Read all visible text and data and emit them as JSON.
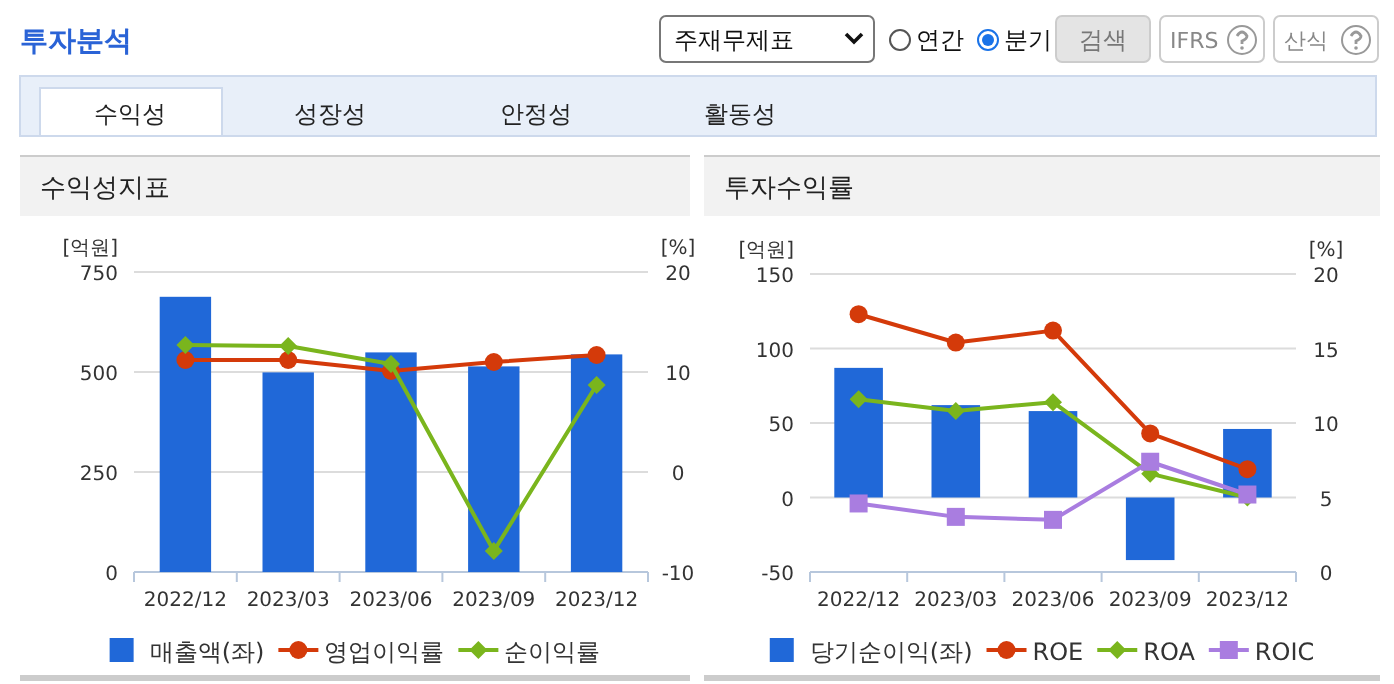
{
  "chart_data": [
    {
      "type": "other",
      "title": "투자분석",
      "annotations": [
        "주재무제표",
        "연간",
        "분기",
        "검색",
        "IFRS",
        "산식",
        "수익성",
        "성장성",
        "안정성",
        "활동성"
      ]
    },
    {
      "type": "bar",
      "title": "수익성지표",
      "categories": [
        "2022/12",
        "2023/03",
        "2023/06",
        "2023/09",
        "2023/12"
      ],
      "ylabel": "[억원]",
      "y2label": "[%]",
      "ylim": [
        0,
        750
      ],
      "yticks": [
        0,
        250,
        500,
        750
      ],
      "y2lim": [
        -10,
        20
      ],
      "y2ticks": [
        -10,
        0,
        10,
        20
      ],
      "grid": "y",
      "legend": "bottom",
      "series": [
        {
          "name": "매출액(좌)",
          "type": "bar",
          "color": "#2068d8",
          "values": [
            688,
            499,
            549,
            514,
            544
          ]
        },
        {
          "name": "영업이익률",
          "type": "line",
          "axis": "y2",
          "marker": "circle",
          "color": "#d43a0a",
          "values": [
            11.2,
            11.2,
            10.1,
            11.0,
            11.7
          ]
        },
        {
          "name": "순이익률",
          "type": "line",
          "axis": "y2",
          "marker": "diamond",
          "color": "#7ab51d",
          "values": [
            12.7,
            12.6,
            10.8,
            -7.9,
            8.7
          ]
        }
      ]
    },
    {
      "type": "bar",
      "title": "투자수익률",
      "categories": [
        "2022/12",
        "2023/03",
        "2023/06",
        "2023/09",
        "2023/12"
      ],
      "ylabel": "[억원]",
      "y2label": "[%]",
      "ylim": [
        -50,
        150
      ],
      "yticks": [
        -50,
        0,
        50,
        100,
        150
      ],
      "y2lim": [
        0,
        20
      ],
      "y2ticks": [
        0,
        5,
        10,
        15,
        20
      ],
      "grid": "y",
      "legend": "bottom",
      "series": [
        {
          "name": "당기순이익(좌)",
          "type": "bar",
          "color": "#2068d8",
          "values": [
            87,
            62,
            58,
            -42,
            46
          ]
        },
        {
          "name": "ROE",
          "type": "line",
          "axis": "y2",
          "marker": "circle",
          "color": "#d43a0a",
          "values": [
            17.3,
            15.4,
            16.2,
            9.3,
            6.9
          ]
        },
        {
          "name": "ROA",
          "type": "line",
          "axis": "y2",
          "marker": "diamond",
          "color": "#7ab51d",
          "values": [
            11.6,
            10.8,
            11.4,
            6.6,
            5.0
          ]
        },
        {
          "name": "ROIC",
          "type": "line",
          "axis": "y2",
          "marker": "square",
          "color": "#a97de0",
          "values": [
            4.6,
            3.7,
            3.5,
            7.4,
            5.2
          ]
        }
      ]
    }
  ]
}
